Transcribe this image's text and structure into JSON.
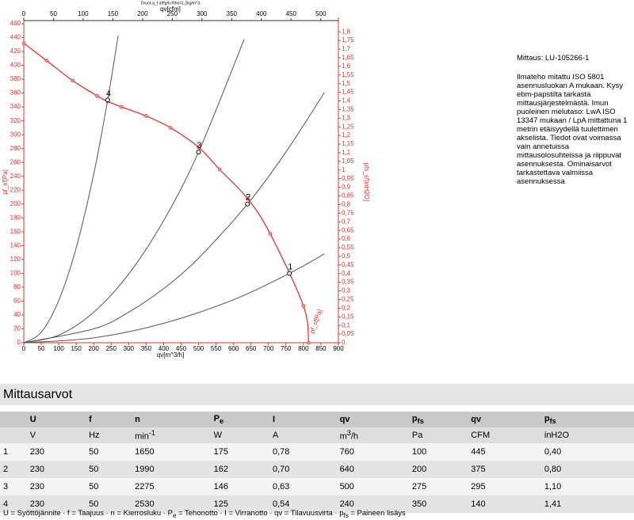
{
  "chart_data": {
    "type": "line",
    "title": "Druck p_f af/fg/tv Rho=1,2kg/m^3",
    "x_label": "qv[m^3/h]",
    "x2_label": "qv[cfm]",
    "y_label": "pf_sf[Pa]",
    "y2_label": "pfs_sf[inH2O]",
    "xlim": [
      0,
      900
    ],
    "xticks": [
      0,
      50,
      100,
      150,
      200,
      250,
      300,
      350,
      400,
      450,
      500,
      550,
      600,
      650,
      700,
      750,
      800,
      850,
      900
    ],
    "x2lim": [
      0,
      529.7
    ],
    "x2ticks": [
      0,
      50,
      100,
      150,
      200,
      250,
      300,
      350,
      400,
      450,
      500
    ],
    "ylim": [
      0,
      460
    ],
    "yticks": [
      0,
      20,
      40,
      60,
      80,
      100,
      120,
      140,
      160,
      180,
      200,
      220,
      240,
      260,
      280,
      300,
      320,
      340,
      360,
      380,
      400,
      420,
      440,
      460
    ],
    "y2lim": [
      0,
      1.8467
    ],
    "y2ticks": [
      0,
      {
        "value": 0.05,
        "label": "0,05"
      },
      {
        "value": 0.1,
        "label": "0,1"
      },
      {
        "value": 0.15,
        "label": "0,15"
      },
      {
        "value": 0.2,
        "label": "0,2"
      },
      {
        "value": 0.25,
        "label": "0,25"
      },
      {
        "value": 0.3,
        "label": "0,3"
      },
      {
        "value": 0.35,
        "label": "0,35"
      },
      {
        "value": 0.4,
        "label": "0,4"
      },
      {
        "value": 0.45,
        "label": "0,45"
      },
      {
        "value": 0.5,
        "label": "0,5"
      },
      {
        "value": 0.55,
        "label": "0,55"
      },
      {
        "value": 0.6,
        "label": "0,6"
      },
      {
        "value": 0.65,
        "label": "0,65"
      },
      {
        "value": 0.7,
        "label": "0,7"
      },
      {
        "value": 0.75,
        "label": "0,75"
      },
      {
        "value": 0.8,
        "label": "0,8"
      },
      {
        "value": 0.85,
        "label": "0,85"
      },
      {
        "value": 0.9,
        "label": "0,9"
      },
      {
        "value": 0.95,
        "label": "0,95"
      },
      1,
      {
        "value": 1.05,
        "label": "1,05"
      },
      {
        "value": 1.1,
        "label": "1,1"
      },
      {
        "value": 1.15,
        "label": "1,15"
      },
      {
        "value": 1.2,
        "label": "1,2"
      },
      {
        "value": 1.25,
        "label": "1,25"
      },
      {
        "value": 1.3,
        "label": "1,3"
      },
      {
        "value": 1.35,
        "label": "1,35"
      },
      {
        "value": 1.4,
        "label": "1,4"
      },
      {
        "value": 1.45,
        "label": "1,45"
      },
      {
        "value": 1.5,
        "label": "1,5"
      },
      {
        "value": 1.55,
        "label": "1,55"
      },
      {
        "value": 1.6,
        "label": "1,6"
      },
      {
        "value": 1.65,
        "label": "1,65"
      },
      {
        "value": 1.7,
        "label": "1,7"
      },
      {
        "value": 1.75,
        "label": "1,75"
      },
      {
        "value": 1.8,
        "label": "1,8"
      }
    ],
    "axis_color": "#e8322f",
    "series": [
      {
        "name": "pf_sf[Pa]",
        "color": "#e8322f",
        "markers": true,
        "x": [
          0,
          65,
          140,
          210,
          240,
          280,
          350,
          420,
          500,
          560,
          640,
          705,
          800,
          815
        ],
        "values": [
          432,
          407,
          378,
          356,
          348,
          340,
          327,
          310,
          282,
          250,
          208,
          157,
          53,
          0
        ]
      },
      {
        "color": "#555555",
        "x": [
          0,
          50,
          100,
          150,
          200,
          240,
          270
        ],
        "values": [
          0,
          15,
          61,
          137,
          243,
          350,
          443
        ]
      },
      {
        "color": "#555555",
        "x": [
          0,
          100,
          200,
          300,
          400,
          500,
          630
        ],
        "values": [
          0,
          11,
          44,
          99,
          176,
          275,
          437
        ]
      },
      {
        "color": "#555555",
        "x": [
          0,
          200,
          300,
          400,
          500,
          640,
          750,
          860
        ],
        "values": [
          0,
          20,
          44,
          78,
          122,
          200,
          275,
          361
        ]
      },
      {
        "color": "#555555",
        "x": [
          0,
          200,
          400,
          600,
          760,
          860
        ],
        "values": [
          0,
          7,
          28,
          62,
          100,
          128
        ]
      }
    ],
    "points": [
      {
        "label": "1",
        "x": 760,
        "y": 100
      },
      {
        "label": "2",
        "x": 640,
        "y": 200
      },
      {
        "label": "3",
        "x": 500,
        "y": 275
      },
      {
        "label": "4",
        "x": 240,
        "y": 350
      }
    ]
  },
  "info": {
    "title": "Mittaus: LU-105266-1",
    "text": "Ilmateho mitattu ISO 5801 asennusluokan A mukaan. Kysy ebm-papstilta tarkasta mittausjärjestelmästä. Imun puoleinen melutaso: LwA  ISO 13347 mukaan / LpA mittattuna 1 metrin etäisyydellä tuulettimen akselista. Tiedot ovat voimassa vain annetuissa mittausolosuhteissa ja riippuvat asennuksesta. Ominaisarvot tarkastettava valmiissa asennuksessa"
  },
  "table": {
    "title": "Mittausarvot",
    "header": [
      "U",
      "f",
      "n",
      {
        "text": "P",
        "sub": "e"
      },
      "I",
      "qv",
      {
        "text": "p",
        "sub": "fs"
      },
      "qv",
      {
        "text": "p",
        "sub": "fs"
      }
    ],
    "units": [
      "V",
      "Hz",
      {
        "text": "min",
        "sup": "-1"
      },
      "W",
      "A",
      {
        "text": "m",
        "sup": "3",
        "after": "/h"
      },
      "Pa",
      "CFM",
      "inH2O"
    ],
    "rows": [
      [
        "1",
        "230",
        "50",
        "1650",
        "175",
        "0,78",
        "760",
        "100",
        "445",
        "0,40"
      ],
      [
        "2",
        "230",
        "50",
        "1990",
        "162",
        "0,70",
        "640",
        "200",
        "375",
        "0,80"
      ],
      [
        "3",
        "230",
        "50",
        "2275",
        "146",
        "0,63",
        "500",
        "275",
        "295",
        "1,10"
      ],
      [
        "4",
        "230",
        "50",
        "2530",
        "125",
        "0,54",
        "240",
        "350",
        "140",
        "1,41"
      ]
    ],
    "footer": [
      {
        "t": "U = Syöttöjännite · f = Taajuus · n = Kierrosluku · P"
      },
      {
        "t": "e",
        "sub": true
      },
      {
        "t": " = Tehonotto · I = Virranotto · qv = Tilavuusvirta · p"
      },
      {
        "t": "fs",
        "sub": true
      },
      {
        "t": " = Paineen lisäys"
      }
    ]
  }
}
